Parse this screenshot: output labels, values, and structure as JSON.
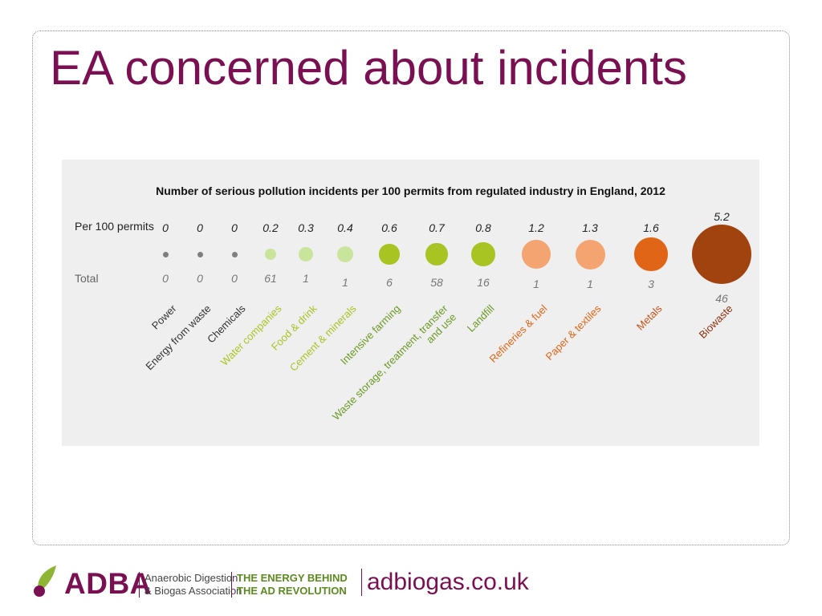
{
  "slide": {
    "title": "EA concerned about incidents"
  },
  "chart_data": {
    "type": "bubble-table",
    "title": "Number of serious pollution incidents per 100 permits from regulated industry in England,  2012",
    "row_labels": {
      "rate": "Per 100 permits",
      "total": "Total"
    },
    "categories": [
      {
        "label": "Power",
        "lines": [
          "Power"
        ],
        "rate": 0,
        "rate_text": "0",
        "total": 0,
        "total_text": "0",
        "color": "#7f7f7f"
      },
      {
        "label": "Energy from waste",
        "lines": [
          "Energy from waste"
        ],
        "rate": 0,
        "rate_text": "0",
        "total": 0,
        "total_text": "0",
        "color": "#7f7f7f"
      },
      {
        "label": "Chemicals",
        "lines": [
          "Chemicals"
        ],
        "rate": 0,
        "rate_text": "0",
        "total": 0,
        "total_text": "0",
        "color": "#7f7f7f"
      },
      {
        "label": "Water companies",
        "lines": [
          "Water companies"
        ],
        "rate": 0.2,
        "rate_text": "0.2",
        "total": 61,
        "total_text": "61",
        "color": "#c9e59c"
      },
      {
        "label": "Food & drink",
        "lines": [
          "Food & drink"
        ],
        "rate": 0.3,
        "rate_text": "0.3",
        "total": 1,
        "total_text": "1",
        "color": "#c9e59c"
      },
      {
        "label": "Cement & minerals",
        "lines": [
          "Cement & minerals"
        ],
        "rate": 0.4,
        "rate_text": "0.4",
        "total": 1,
        "total_text": "1",
        "color": "#c9e59c"
      },
      {
        "label": "Intensive farming",
        "lines": [
          "Intensive farming"
        ],
        "rate": 0.6,
        "rate_text": "0.6",
        "total": 6,
        "total_text": "6",
        "color": "#a8c423"
      },
      {
        "label": "Waste storage, treatment, transfer and use",
        "lines": [
          "Waste storage, treatment, transfer",
          "and use"
        ],
        "rate": 0.7,
        "rate_text": "0.7",
        "total": 58,
        "total_text": "58",
        "color": "#a8c423"
      },
      {
        "label": "Landfill",
        "lines": [
          "Landfill"
        ],
        "rate": 0.8,
        "rate_text": "0.8",
        "total": 16,
        "total_text": "16",
        "color": "#a8c423"
      },
      {
        "label": "Refineries & fuel",
        "lines": [
          "Refineries & fuel"
        ],
        "rate": 1.2,
        "rate_text": "1.2",
        "total": 1,
        "total_text": "1",
        "color": "#f4a470"
      },
      {
        "label": "Paper & textiles",
        "lines": [
          "Paper & textiles"
        ],
        "rate": 1.3,
        "rate_text": "1.3",
        "total": 1,
        "total_text": "1",
        "color": "#f4a470"
      },
      {
        "label": "Metals",
        "lines": [
          "Metals"
        ],
        "rate": 1.6,
        "rate_text": "1.6",
        "total": 3,
        "total_text": "3",
        "color": "#e06516"
      },
      {
        "label": "Biowaste",
        "lines": [
          "Biowaste"
        ],
        "rate": 5.2,
        "rate_text": "5.2",
        "total": 46,
        "total_text": "46",
        "color": "#a0430f"
      }
    ],
    "label_colors": [
      "#333333",
      "#333333",
      "#333333",
      "#a8c423",
      "#a8c423",
      "#a8c423",
      "#6a9a22",
      "#6a9a22",
      "#6a9a22",
      "#e06516",
      "#e06516",
      "#c7541a",
      "#8b2f0c"
    ],
    "grid": false
  },
  "footer": {
    "brand": "ADBA",
    "association_lines": [
      "Anaerobic Digestion",
      "& Biogas Association"
    ],
    "tagline_lines": [
      "THE ENERGY BEHIND",
      "THE AD REVOLUTION"
    ],
    "website": "adbiogas.co.uk",
    "brand_color": "#7a0f52",
    "accent_color": "#5c8a1e"
  }
}
